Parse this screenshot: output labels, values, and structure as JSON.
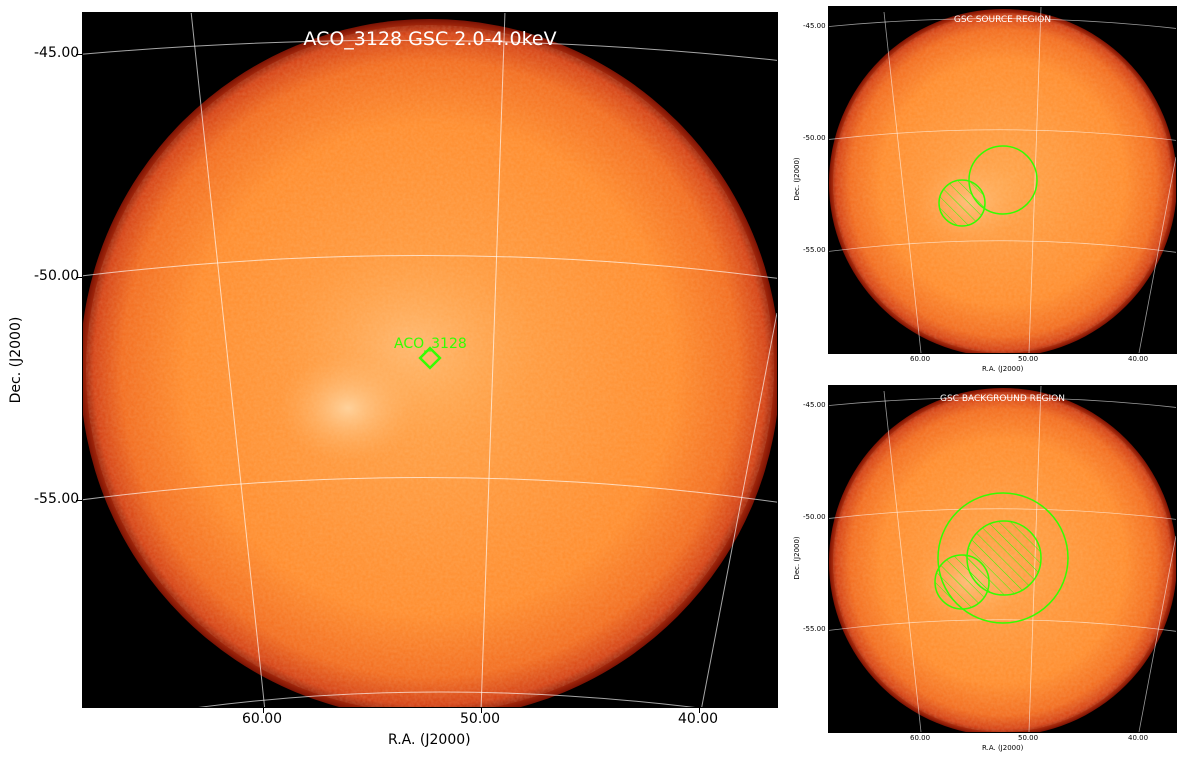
{
  "main_panel": {
    "title": "ACO_3128 GSC 2.0-4.0keV",
    "xlabel": "R.A. (J2000)",
    "ylabel": "Dec. (J2000)",
    "x_ticks": [
      "60.00",
      "50.00",
      "40.00"
    ],
    "y_ticks": [
      "-45.00",
      "-50.00",
      "-55.00"
    ],
    "source_label": "ACO_3128",
    "marker_color": "#33ff00"
  },
  "source_panel": {
    "title": "GSC SOURCE REGION",
    "xlabel": "R.A. (J2000)",
    "ylabel": "Dec. (J2000)",
    "x_ticks": [
      "60.00",
      "50.00",
      "40.00"
    ],
    "y_ticks": [
      "-45.00",
      "-50.00",
      "-55.00"
    ]
  },
  "background_panel": {
    "title": "GSC BACKGROUND REGION",
    "xlabel": "R.A. (J2000)",
    "ylabel": "Dec. (J2000)",
    "x_ticks": [
      "60.00",
      "50.00",
      "40.00"
    ],
    "y_ticks": [
      "-45.00",
      "-50.00",
      "-55.00"
    ]
  },
  "colors": {
    "image_core": "#ff9a3a",
    "image_edge": "#e8501a",
    "grid": "#ffffff",
    "region": "#33ff00"
  }
}
